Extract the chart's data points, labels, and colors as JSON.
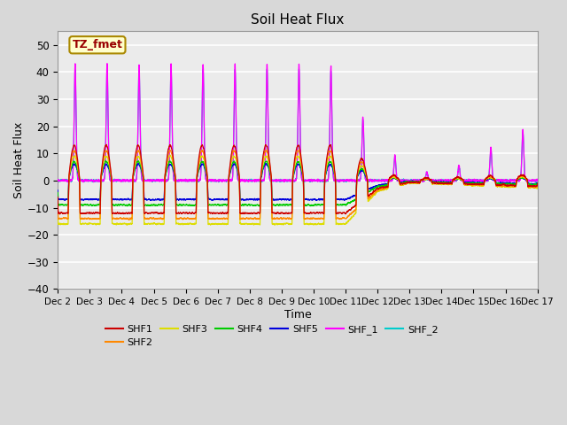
{
  "title": "Soil Heat Flux",
  "xlabel": "Time",
  "ylabel": "Soil Heat Flux",
  "xlim_days": [
    2,
    17
  ],
  "ylim": [
    -40,
    55
  ],
  "yticks": [
    -40,
    -30,
    -20,
    -10,
    0,
    10,
    20,
    30,
    40,
    50
  ],
  "xtick_labels": [
    "Dec 2",
    "Dec 3",
    "Dec 4",
    "Dec 5",
    "Dec 6",
    "Dec 7",
    "Dec 8",
    "Dec 9",
    "Dec 10",
    "Dec 11",
    "Dec 12",
    "Dec 13",
    "Dec 14",
    "Dec 15",
    "Dec 16",
    "Dec 17"
  ],
  "annotation_text": "TZ_fmet",
  "annotation_box_color": "#ffffcc",
  "annotation_border_color": "#aa8800",
  "series_colors": {
    "SHF1": "#cc0000",
    "SHF2": "#ff8800",
    "SHF3": "#dddd00",
    "SHF4": "#00cc00",
    "SHF5": "#0000dd",
    "SHF_1": "#ff00ff",
    "SHF_2": "#00cccc"
  },
  "background_color": "#d8d8d8",
  "plot_bg_color": "#ebebeb",
  "grid_color": "#ffffff",
  "legend_ncol_row1": 6,
  "legend_ncol_row2": 1
}
